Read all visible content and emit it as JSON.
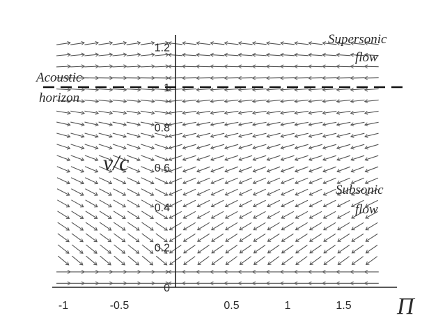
{
  "chart_data": {
    "type": "vector-field",
    "x_ticks": [
      "-1",
      "-0.5",
      "0.5",
      "1",
      "1.5"
    ],
    "x_tick_values": [
      -1,
      -0.5,
      0.5,
      1,
      1.5
    ],
    "y_ticks": [
      "0",
      "0.2",
      "0.4",
      "0.6",
      "0.8",
      "1",
      "1.2"
    ],
    "y_tick_values": [
      0,
      0.2,
      0.4,
      0.6,
      0.8,
      1,
      1.2
    ],
    "xlabel": "Π",
    "ylabel": "v/c",
    "xlim": [
      -1.1,
      1.85
    ],
    "ylim": [
      0,
      1.25
    ],
    "horizon_level": 1,
    "annotations": {
      "horizon": [
        "Acoustic",
        "horizon"
      ],
      "supersonic": [
        "Supersonic",
        "flow"
      ],
      "subsonic": [
        "Subsonic",
        "flow"
      ]
    },
    "grid": false,
    "arrow_color": "#555555",
    "line_color": "#222222"
  }
}
